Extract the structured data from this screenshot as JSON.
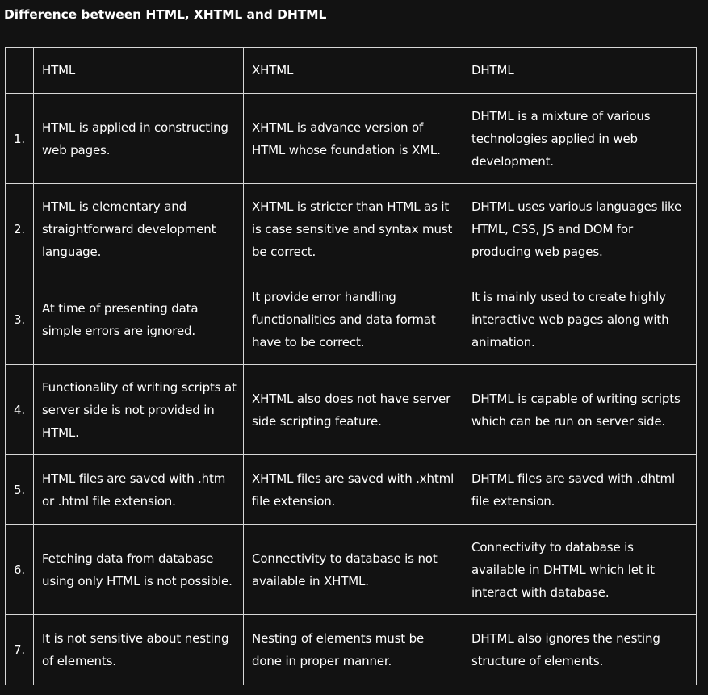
{
  "title": "Difference between HTML, XHTML and DHTML",
  "table": {
    "headers": [
      "",
      "HTML",
      "XHTML",
      "DHTML"
    ],
    "rows": [
      {
        "num": "1.",
        "html": "HTML is applied in constructing web pages.",
        "xhtml": "XHTML is advance version of HTML whose foundation is XML.",
        "dhtml": "DHTML is a mixture of various technologies applied in web development."
      },
      {
        "num": "2.",
        "html": "HTML is elementary and straightforward development language.",
        "xhtml": "XHTML is stricter than HTML as it is case sensitive and syntax must be correct.",
        "dhtml": "DHTML uses various languages like HTML, CSS, JS and DOM for producing web pages."
      },
      {
        "num": "3.",
        "html": "At time of presenting data simple errors are ignored.",
        "xhtml": "It provide error handling functionalities and data format have to be correct.",
        "dhtml": "It is mainly used to create highly interactive web pages along with animation."
      },
      {
        "num": "4.",
        "html": "Functionality of writing scripts at server side is not provided in HTML.",
        "xhtml": "XHTML also does not have server side scripting feature.",
        "dhtml": "DHTML is capable of writing scripts which can be run on server side."
      },
      {
        "num": "5.",
        "html": "HTML files are saved with .htm or .html file extension.",
        "xhtml": "XHTML files are saved with .xhtml file extension.",
        "dhtml": "DHTML files are saved with .dhtml file extension."
      },
      {
        "num": "6.",
        "html": "Fetching data from database using only HTML is not possible.",
        "xhtml": "Connectivity to database is not available in XHTML.",
        "dhtml": "Connectivity to database is available in DHTML which let it interact with database."
      },
      {
        "num": "7.",
        "html": "It is not sensitive about nesting of elements.",
        "xhtml": "Nesting of elements must be done in proper manner.",
        "dhtml": "DHTML also ignores the nesting structure of elements."
      }
    ]
  }
}
